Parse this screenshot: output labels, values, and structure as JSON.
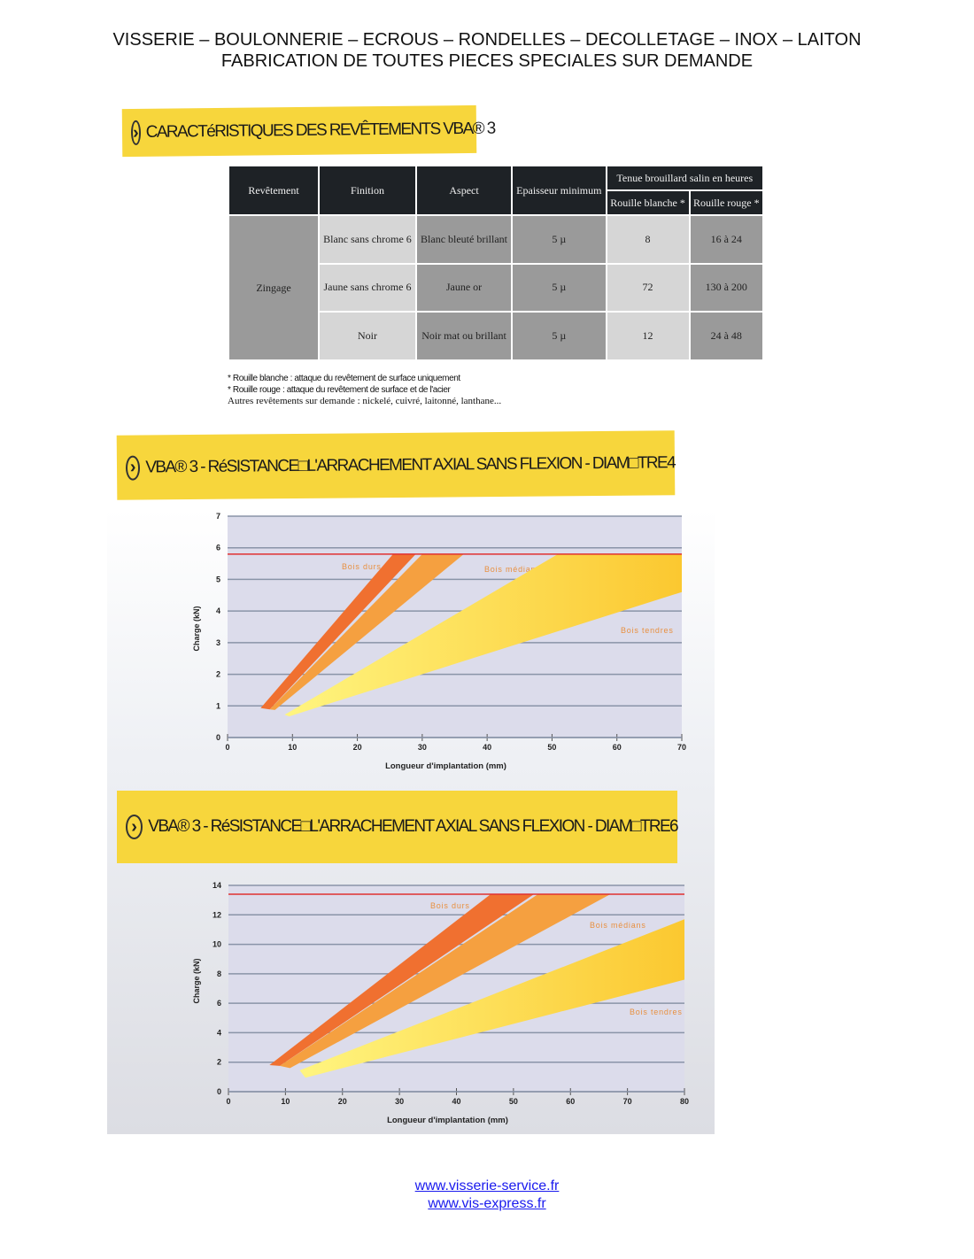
{
  "header": {
    "line1": "VISSERIE – BOULONNERIE – ECROUS – RONDELLES – DECOLLETAGE – INOX – LAITON",
    "line2": "FABRICATION DE TOUTES PIECES SPECIALES SUR DEMANDE"
  },
  "banners": {
    "coatings": "CARACTéRISTIQUES DES REVÊTEMENTS VBA® 3",
    "chart1": "VBA® 3 - RéSISTANCE□L'ARRACHEMENT AXIAL SANS FLEXION - DIAM□TRE4",
    "chart2": "VBA® 3 - RéSISTANCE□L'ARRACHEMENT AXIAL SANS FLEXION - DIAM□TRE6",
    "logo_icon": "chevron-right-circle-icon"
  },
  "table": {
    "headers": [
      "Revêtement",
      "Finition",
      "Aspect",
      "Epaisseur minimum",
      "Tenue brouillard salin en heures"
    ],
    "subheaders": [
      "Rouille blanche *",
      "Rouille rouge *"
    ],
    "group": "Zingage",
    "rows": [
      {
        "finition": "Blanc sans chrome 6",
        "aspect": "Blanc bleuté brillant",
        "epaisseur": "5 µ",
        "blanche": "8",
        "rouge": "16 à 24"
      },
      {
        "finition": "Jaune sans chrome 6",
        "aspect": "Jaune or",
        "epaisseur": "5 µ",
        "blanche": "72",
        "rouge": "130 à 200"
      },
      {
        "finition": "Noir",
        "aspect": "Noir mat ou brillant",
        "epaisseur": "5 µ",
        "blanche": "12",
        "rouge": "24 à 48"
      }
    ]
  },
  "notes": [
    "* Rouille blanche : attaque du revêtement de surface uniquement",
    "* Rouille rouge : attaque du revêtement de surface et de l'acier",
    "Autres revêtements sur demande : nickelé, cuivré, laitonné, lanthane..."
  ],
  "chart_data": [
    {
      "type": "area",
      "xlabel": "Longueur d'implantation (mm)",
      "ylabel": "Charge (kN)",
      "xlim": [
        0,
        70
      ],
      "ylim": [
        0,
        7
      ],
      "xticks": [
        "0",
        "10",
        "20",
        "30",
        "40",
        "50",
        "60",
        "70"
      ],
      "yticks": [
        "0",
        "1",
        "2",
        "3",
        "4",
        "5",
        "6",
        "7"
      ],
      "grid": true,
      "limit_line": {
        "y": 5.8,
        "color": "#e03030"
      },
      "series": [
        {
          "name": "Bois durs",
          "color": "#f07030",
          "polygon": [
            [
              5.1,
              0.93
            ],
            [
              25.5,
              5.8
            ],
            [
              29.0,
              5.8
            ],
            [
              6.5,
              0.89
            ]
          ]
        },
        {
          "name": "Bois médians",
          "color": "#f5a040",
          "polygon": [
            [
              6.5,
              0.89
            ],
            [
              30.0,
              5.8
            ],
            [
              36.4,
              5.8
            ],
            [
              7.3,
              0.87
            ]
          ]
        },
        {
          "name": "Bois tendres",
          "color": "#fbe050",
          "polygon": [
            [
              8.8,
              0.72
            ],
            [
              50.9,
              5.8
            ],
            [
              70,
              5.8
            ],
            [
              70,
              4.6
            ],
            [
              9.5,
              0.67
            ]
          ]
        }
      ]
    },
    {
      "type": "area",
      "xlabel": "Longueur d'implantation (mm)",
      "ylabel": "Charge (kN)",
      "xlim": [
        0,
        80
      ],
      "ylim": [
        0,
        14
      ],
      "xticks": [
        "0",
        "10",
        "20",
        "30",
        "40",
        "50",
        "60",
        "70",
        "80"
      ],
      "yticks": [
        "0",
        "2",
        "4",
        "6",
        "8",
        "10",
        "12",
        "14"
      ],
      "grid": true,
      "limit_line": {
        "y": 13.4,
        "color": "#e03030"
      },
      "series": [
        {
          "name": "Bois durs",
          "color": "#f07030",
          "polygon": [
            [
              7.2,
              1.8
            ],
            [
              46.0,
              13.4
            ],
            [
              53.6,
              13.4
            ],
            [
              9.0,
              1.75
            ]
          ]
        },
        {
          "name": "Bois médians",
          "color": "#f5a040",
          "polygon": [
            [
              9.0,
              1.75
            ],
            [
              54.3,
              13.4
            ],
            [
              67.0,
              13.4
            ],
            [
              10.8,
              1.6
            ]
          ]
        },
        {
          "name": "Bois tendres",
          "color": "#fbe050",
          "polygon": [
            [
              12.5,
              1.45
            ],
            [
              80,
              11.7
            ],
            [
              80,
              7.6
            ],
            [
              13.5,
              0.95
            ]
          ]
        }
      ]
    }
  ],
  "footer": {
    "link1": "www.visserie-service.fr",
    "link2": "www.vis-express.fr"
  }
}
